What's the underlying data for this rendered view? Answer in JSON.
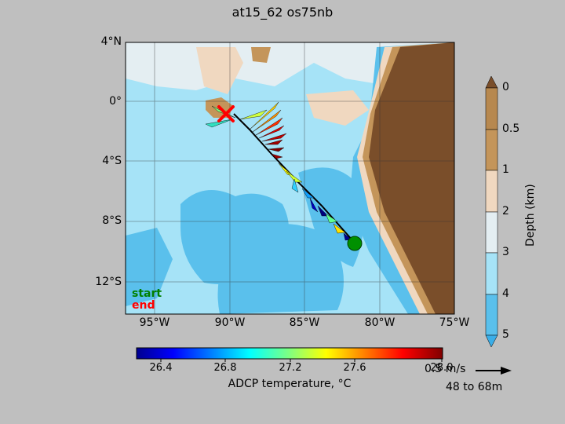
{
  "title": "at15_62 os75nb",
  "map": {
    "lat_ticks": [
      "4°N",
      "0°",
      "4°S",
      "8°S",
      "12°S"
    ],
    "lon_ticks": [
      "95°W",
      "90°W",
      "85°W",
      "80°W",
      "75°W"
    ],
    "extent": {
      "lon": [
        -97,
        -75
      ],
      "lat": [
        -14,
        4
      ]
    },
    "start_label": "start",
    "end_label": "end",
    "start_color": "#008000",
    "end_color": "#ff0000",
    "land_color": "#7a4e2a"
  },
  "colorbar": {
    "label": "ADCP temperature, °C",
    "ticks": [
      "26.4",
      "26.8",
      "27.2",
      "27.6",
      "28.0"
    ],
    "range": [
      26.25,
      28.0
    ],
    "colormap": "jet"
  },
  "depth_bar": {
    "label": "Depth (km)",
    "ticks": [
      "0",
      "0.5",
      "1",
      "2",
      "3",
      "4",
      "5"
    ]
  },
  "scale": {
    "label": "0.5 m/s",
    "depth_range": "48 to 68m"
  }
}
